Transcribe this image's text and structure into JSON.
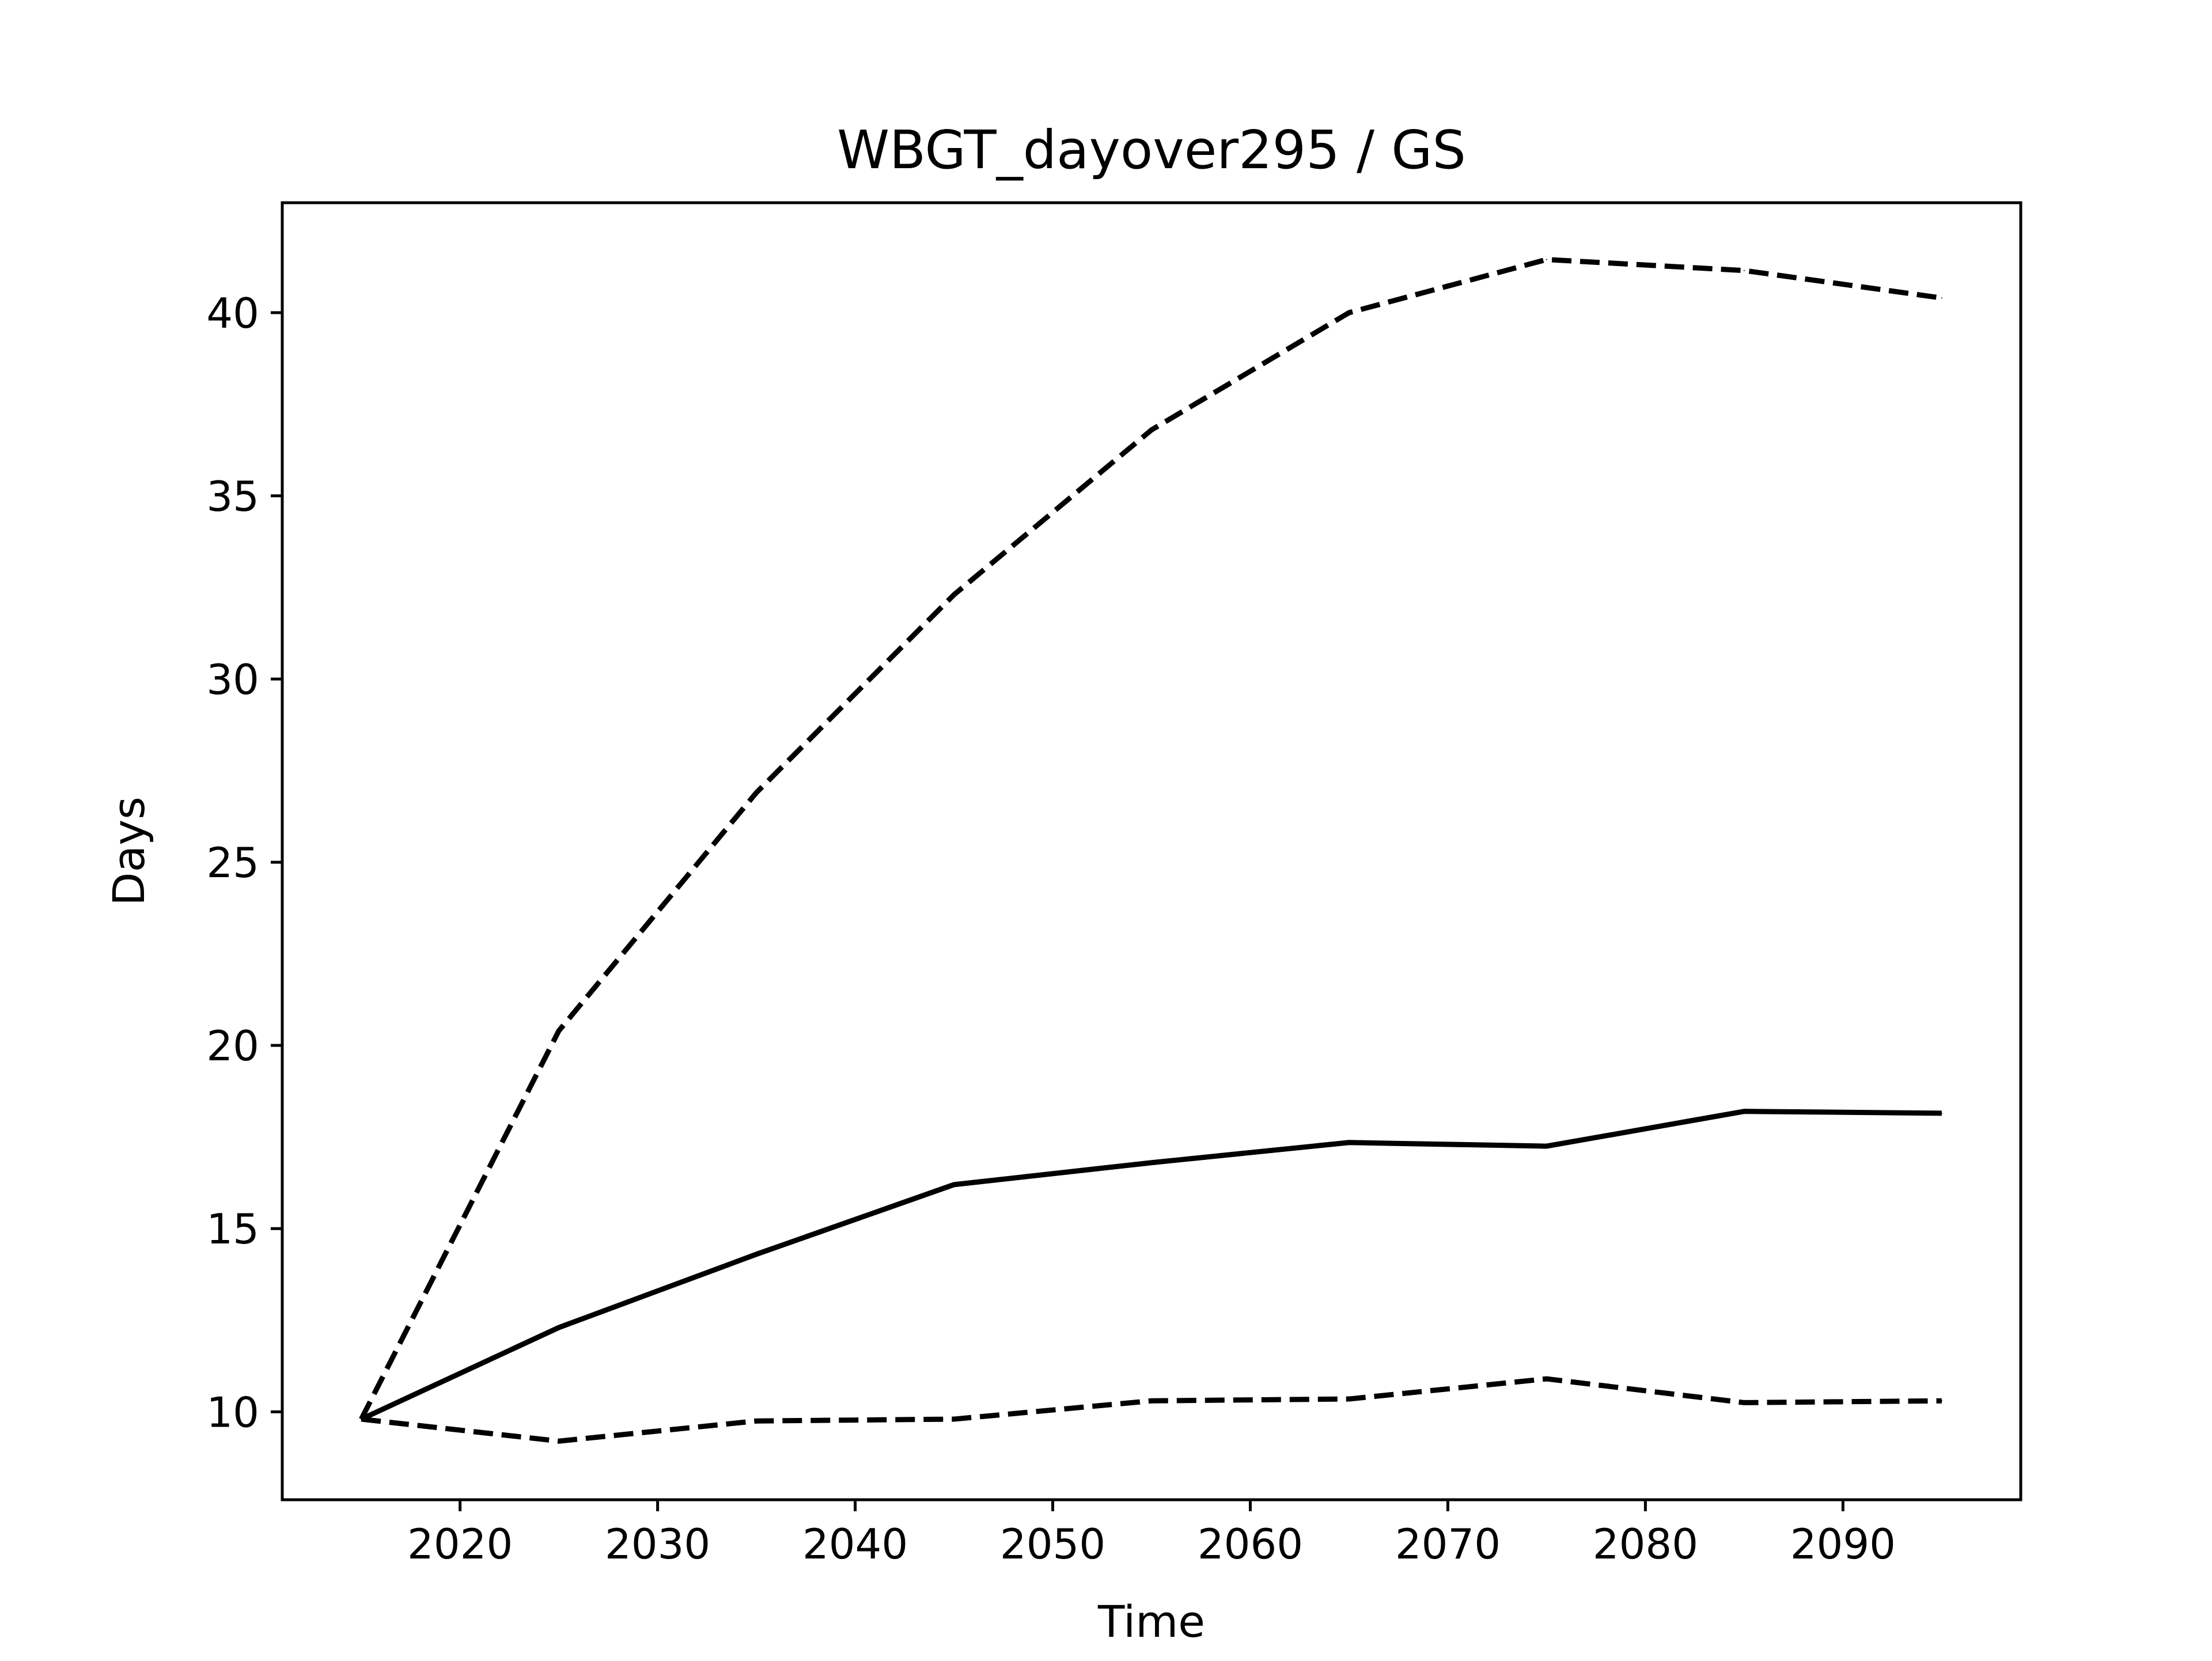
{
  "chart_data": {
    "type": "line",
    "title": "WBGT_dayover295 / GS",
    "xlabel": "Time",
    "ylabel": "Days",
    "xlim": [
      2011,
      2099
    ],
    "ylim": [
      7.6,
      43.0
    ],
    "xticks": [
      2020,
      2030,
      2040,
      2050,
      2060,
      2070,
      2080,
      2090
    ],
    "yticks": [
      10,
      15,
      20,
      25,
      30,
      35,
      40
    ],
    "grid": false,
    "x": [
      2015,
      2025,
      2035,
      2045,
      2055,
      2065,
      2075,
      2085,
      2095
    ],
    "series": [
      {
        "style": "solid",
        "color": "#000000",
        "values": [
          9.8,
          12.3,
          14.3,
          16.2,
          16.8,
          17.35,
          17.25,
          18.2,
          18.15
        ]
      },
      {
        "style": "dashed",
        "color": "#000000",
        "values": [
          9.8,
          20.4,
          26.9,
          32.3,
          36.8,
          40.0,
          41.45,
          41.15,
          40.4
        ]
      },
      {
        "style": "dashed",
        "color": "#000000",
        "values": [
          9.8,
          9.2,
          9.75,
          9.8,
          10.3,
          10.35,
          10.9,
          10.25,
          10.3
        ]
      }
    ]
  }
}
